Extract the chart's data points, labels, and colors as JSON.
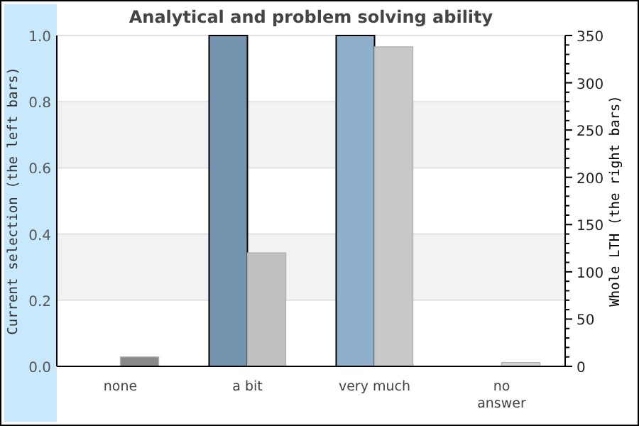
{
  "chart_data": {
    "type": "bar",
    "title": "Analytical and problem solving ability",
    "ylabel": "Current selection (the left bars)",
    "y2label": "Whole LTH (the right bars)",
    "categories": [
      "none",
      "a bit",
      "very much",
      "no answer"
    ],
    "series": [
      {
        "axis": "y",
        "colors": [
          "#7393ae",
          "#7393ae",
          "#8fb0cc",
          "#8fb0cc"
        ],
        "values": [
          0,
          1,
          1,
          0
        ]
      },
      {
        "axis": "y2",
        "colors": [
          "#888888",
          "#c0c0c0",
          "#c8c8c8",
          "#d8d8d8"
        ],
        "values": [
          10,
          120,
          338,
          4
        ]
      }
    ],
    "ylim": [
      0,
      1
    ],
    "yticks": [
      {
        "value": 0,
        "label": "0.0"
      },
      {
        "value": 0.2,
        "label": "0.2"
      },
      {
        "value": 0.4,
        "label": "0.4"
      },
      {
        "value": 0.6,
        "label": "0.6"
      },
      {
        "value": 0.8,
        "label": "0.8"
      },
      {
        "value": 1,
        "label": "1.0"
      }
    ],
    "y2lim": [
      0,
      350
    ],
    "y2ticks": [
      0,
      {
        "value": 10,
        "label": null
      },
      {
        "value": 20,
        "label": null
      },
      {
        "value": 30,
        "label": null
      },
      {
        "value": 40,
        "label": null
      },
      50,
      {
        "value": 60,
        "label": null
      },
      {
        "value": 70,
        "label": null
      },
      {
        "value": 80,
        "label": null
      },
      {
        "value": 90,
        "label": null
      },
      100,
      {
        "value": 110,
        "label": null
      },
      {
        "value": 120,
        "label": null
      },
      {
        "value": 130,
        "label": null
      },
      {
        "value": 140,
        "label": null
      },
      150,
      {
        "value": 160,
        "label": null
      },
      {
        "value": 170,
        "label": null
      },
      {
        "value": 180,
        "label": null
      },
      {
        "value": 190,
        "label": null
      },
      200,
      {
        "value": 210,
        "label": null
      },
      {
        "value": 220,
        "label": null
      },
      {
        "value": 230,
        "label": null
      },
      {
        "value": 240,
        "label": null
      },
      250,
      {
        "value": 260,
        "label": null
      },
      {
        "value": 270,
        "label": null
      },
      {
        "value": 280,
        "label": null
      },
      {
        "value": 290,
        "label": null
      },
      300,
      {
        "value": 310,
        "label": null
      },
      {
        "value": 320,
        "label": null
      },
      {
        "value": 330,
        "label": null
      },
      {
        "value": 340,
        "label": null
      },
      350
    ],
    "bands": [
      {
        "axis": "y",
        "from": 0.2,
        "to": 0.4,
        "color": "#f2f2f2"
      },
      {
        "axis": "y",
        "from": 0.6,
        "to": 0.8,
        "color": "#f2f2f2"
      }
    ],
    "grid": "y"
  }
}
